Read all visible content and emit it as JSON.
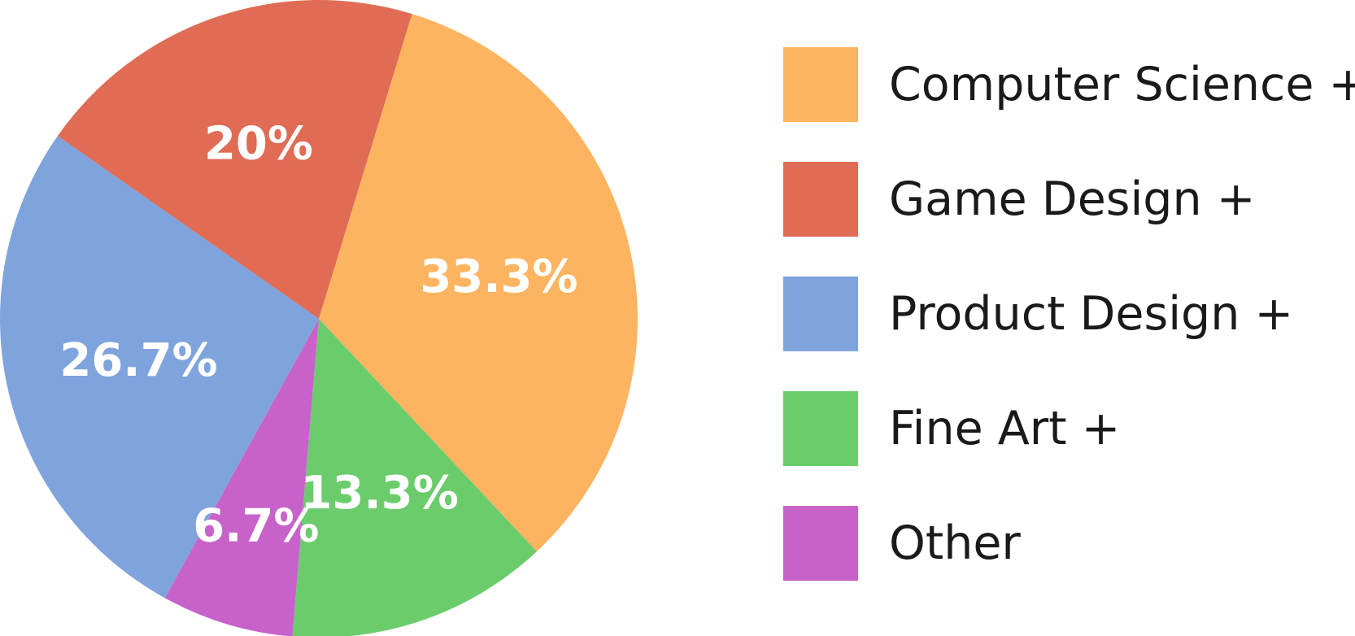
{
  "chart_data": {
    "type": "pie",
    "slices": [
      {
        "name": "Computer Science +",
        "value": 33.3,
        "label": "33.3%",
        "color": "#FDB461"
      },
      {
        "name": "Game Design +",
        "value": 20,
        "label": "20%",
        "color": "#E06C55"
      },
      {
        "name": "Product Design +",
        "value": 26.7,
        "label": "26.7%",
        "color": "#7FA4DD"
      },
      {
        "name": "Fine Art +",
        "value": 13.3,
        "label": "13.3%",
        "color": "#6BCC6C"
      },
      {
        "name": "Other",
        "value": 6.7,
        "label": "6.7%",
        "color": "#C862CB"
      }
    ],
    "legend_position": "right"
  }
}
